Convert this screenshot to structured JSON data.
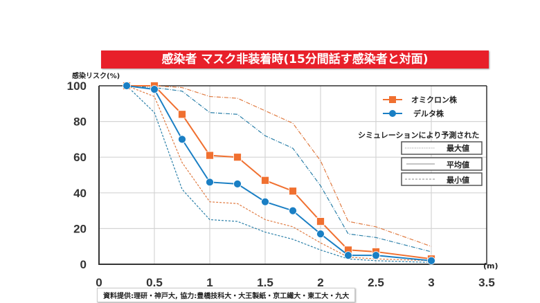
{
  "chart_data": {
    "type": "line",
    "title": "感染者 マスク非装着時(15分間話す感染者と対面)",
    "ylabel": "感染リスク(%)",
    "xlabel": "(m)",
    "xlim": [
      0,
      3.5
    ],
    "ylim": [
      0,
      100
    ],
    "xticks": [
      "0",
      "0.5",
      "1",
      "1.5",
      "2",
      "2.5",
      "3",
      "3.5"
    ],
    "yticks": [
      "0",
      "20",
      "40",
      "60",
      "80",
      "100"
    ],
    "grid": true,
    "x": [
      0.25,
      0.5,
      0.75,
      1,
      1.25,
      1.5,
      1.75,
      2,
      2.25,
      2.5,
      3
    ],
    "series": [
      {
        "name": "オミクロン株",
        "kind": "average",
        "color": "#f07030",
        "marker": "square",
        "values": [
          100,
          100,
          84,
          61,
          60,
          47,
          41,
          24,
          8,
          7,
          3
        ]
      },
      {
        "name": "デルタ株",
        "kind": "average",
        "color": "#1a7fc4",
        "marker": "circle",
        "values": [
          100,
          98,
          70,
          46,
          45,
          35,
          30,
          17,
          5,
          5,
          2
        ]
      },
      {
        "name": "オミクロン株 最大値",
        "kind": "max",
        "color": "#e07a40",
        "values": [
          100,
          100,
          99,
          94,
          93,
          86,
          79,
          58,
          24,
          21,
          10
        ]
      },
      {
        "name": "デルタ株 最大値",
        "kind": "max",
        "color": "#2a7fa8",
        "values": [
          100,
          99,
          97,
          85,
          84,
          72,
          65,
          44,
          17,
          15,
          7
        ]
      },
      {
        "name": "オミクロン株 最小値",
        "kind": "min",
        "color": "#e07a40",
        "values": [
          100,
          94,
          57,
          35,
          34,
          25,
          21,
          12,
          4,
          3,
          2
        ]
      },
      {
        "name": "デルタ株 最小値",
        "kind": "min",
        "color": "#2a7fa8",
        "values": [
          100,
          85,
          42,
          25,
          24,
          18,
          14,
          8,
          3,
          2,
          1
        ]
      }
    ],
    "legend": {
      "placement": "top-right",
      "entries": [
        "オミクロン株",
        "デルタ株"
      ],
      "sim_heading": "シミュレーションにより予測された",
      "sim_entries": [
        "最大値",
        "平均値",
        "最小値"
      ]
    },
    "source": "資料提供:理研・神戸大, 協力:豊橋技科大・大王製紙・京工繊大・東工大・九大"
  }
}
